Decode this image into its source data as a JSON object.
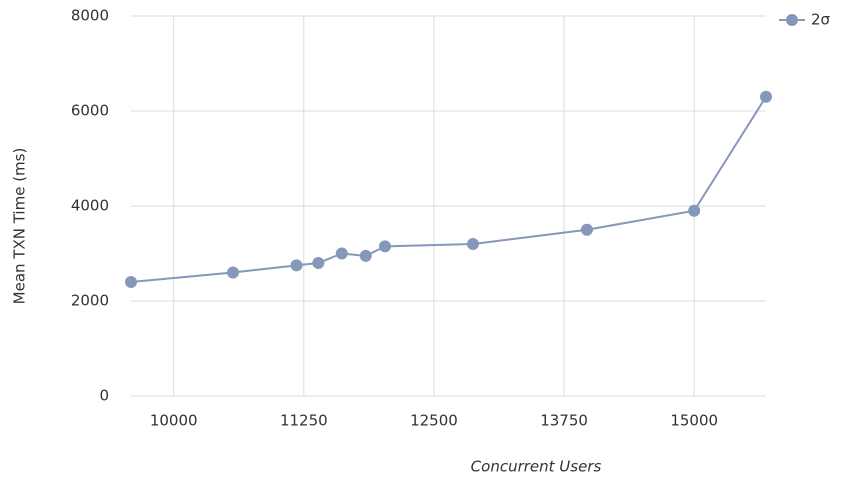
{
  "chart_data": {
    "type": "line",
    "x_label": "Concurrent Users",
    "y_label": "Mean TXN Time (ms)",
    "x": [
      9590,
      10570,
      11180,
      11390,
      11615,
      11845,
      12030,
      12875,
      13970,
      15000,
      15690
    ],
    "series": [
      {
        "name": "2σ",
        "color": "#8598ba",
        "values": [
          2400,
          2600,
          2750,
          2800,
          3000,
          2950,
          3150,
          3200,
          3500,
          3900,
          6300
        ]
      }
    ],
    "xlim": [
      9590,
      15690
    ],
    "xticks": [
      10000,
      11250,
      12500,
      13750,
      15000
    ],
    "ylim": [
      0,
      8000
    ],
    "yticks": [
      0,
      2000,
      4000,
      6000,
      8000
    ],
    "grid": true,
    "legend": "top-right"
  }
}
